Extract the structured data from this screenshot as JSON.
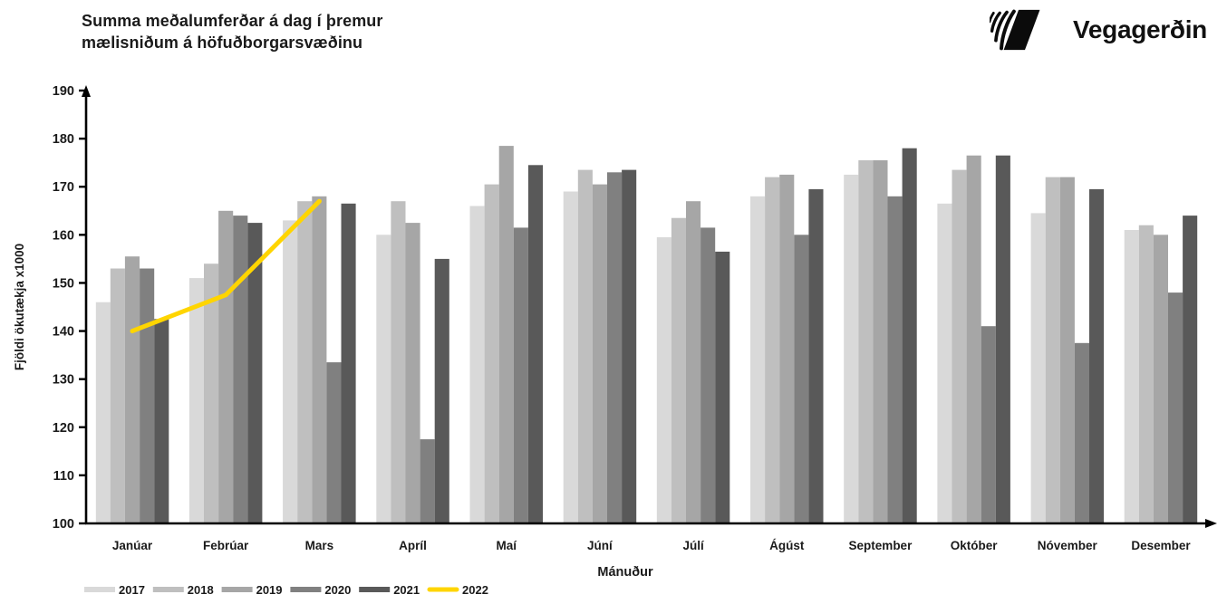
{
  "header": {
    "title_line1": "Summa meðalumferðar á dag í þremur",
    "title_line2": "mælisniðum á höfuðborgarsvæðinu",
    "logo_text": "Vegagerðin",
    "logo_icon": "vegagerdin-stripes-mark"
  },
  "colors": {
    "text": "#1a1a1a",
    "axis": "#000000",
    "background": "#ffffff",
    "accent_2022": "#ffd500"
  },
  "chart_data": {
    "type": "bar",
    "title": "Summa meðalumferðar á dag í þremur mælisniðum á höfuðborgarsvæðinu",
    "xlabel": "Mánuður",
    "ylabel": "Fjöldi ökutækja x1000",
    "ylim": [
      100,
      190
    ],
    "yticks": [
      100,
      110,
      120,
      130,
      140,
      150,
      160,
      170,
      180,
      190
    ],
    "grid": false,
    "legend_position": "bottom-left",
    "categories": [
      "Janúar",
      "Febrúar",
      "Mars",
      "Apríl",
      "Maí",
      "Júní",
      "Júlí",
      "Ágúst",
      "September",
      "Október",
      "Nóvember",
      "Desember"
    ],
    "series": [
      {
        "name": "2017",
        "type": "bar",
        "color": "#d9d9d9",
        "values": [
          146,
          151,
          163,
          160,
          166,
          169,
          159.5,
          168,
          172.5,
          166.5,
          164.5,
          161
        ]
      },
      {
        "name": "2018",
        "type": "bar",
        "color": "#bfbfbf",
        "values": [
          153,
          154,
          167,
          167,
          170.5,
          173.5,
          163.5,
          172,
          175.5,
          173.5,
          172,
          162
        ]
      },
      {
        "name": "2019",
        "type": "bar",
        "color": "#a6a6a6",
        "values": [
          155.5,
          165,
          168,
          162.5,
          178.5,
          170.5,
          167,
          172.5,
          175.5,
          176.5,
          172,
          160
        ]
      },
      {
        "name": "2020",
        "type": "bar",
        "color": "#808080",
        "values": [
          153,
          164,
          133.5,
          117.5,
          161.5,
          173,
          161.5,
          160,
          168,
          141,
          137.5,
          148
        ]
      },
      {
        "name": "2021",
        "type": "bar",
        "color": "#595959",
        "values": [
          142.5,
          162.5,
          166.5,
          155,
          174.5,
          173.5,
          156.5,
          169.5,
          178,
          176.5,
          169.5,
          164
        ]
      },
      {
        "name": "2022",
        "type": "line",
        "color": "#ffd500",
        "values": [
          140,
          147.5,
          167
        ]
      }
    ]
  }
}
